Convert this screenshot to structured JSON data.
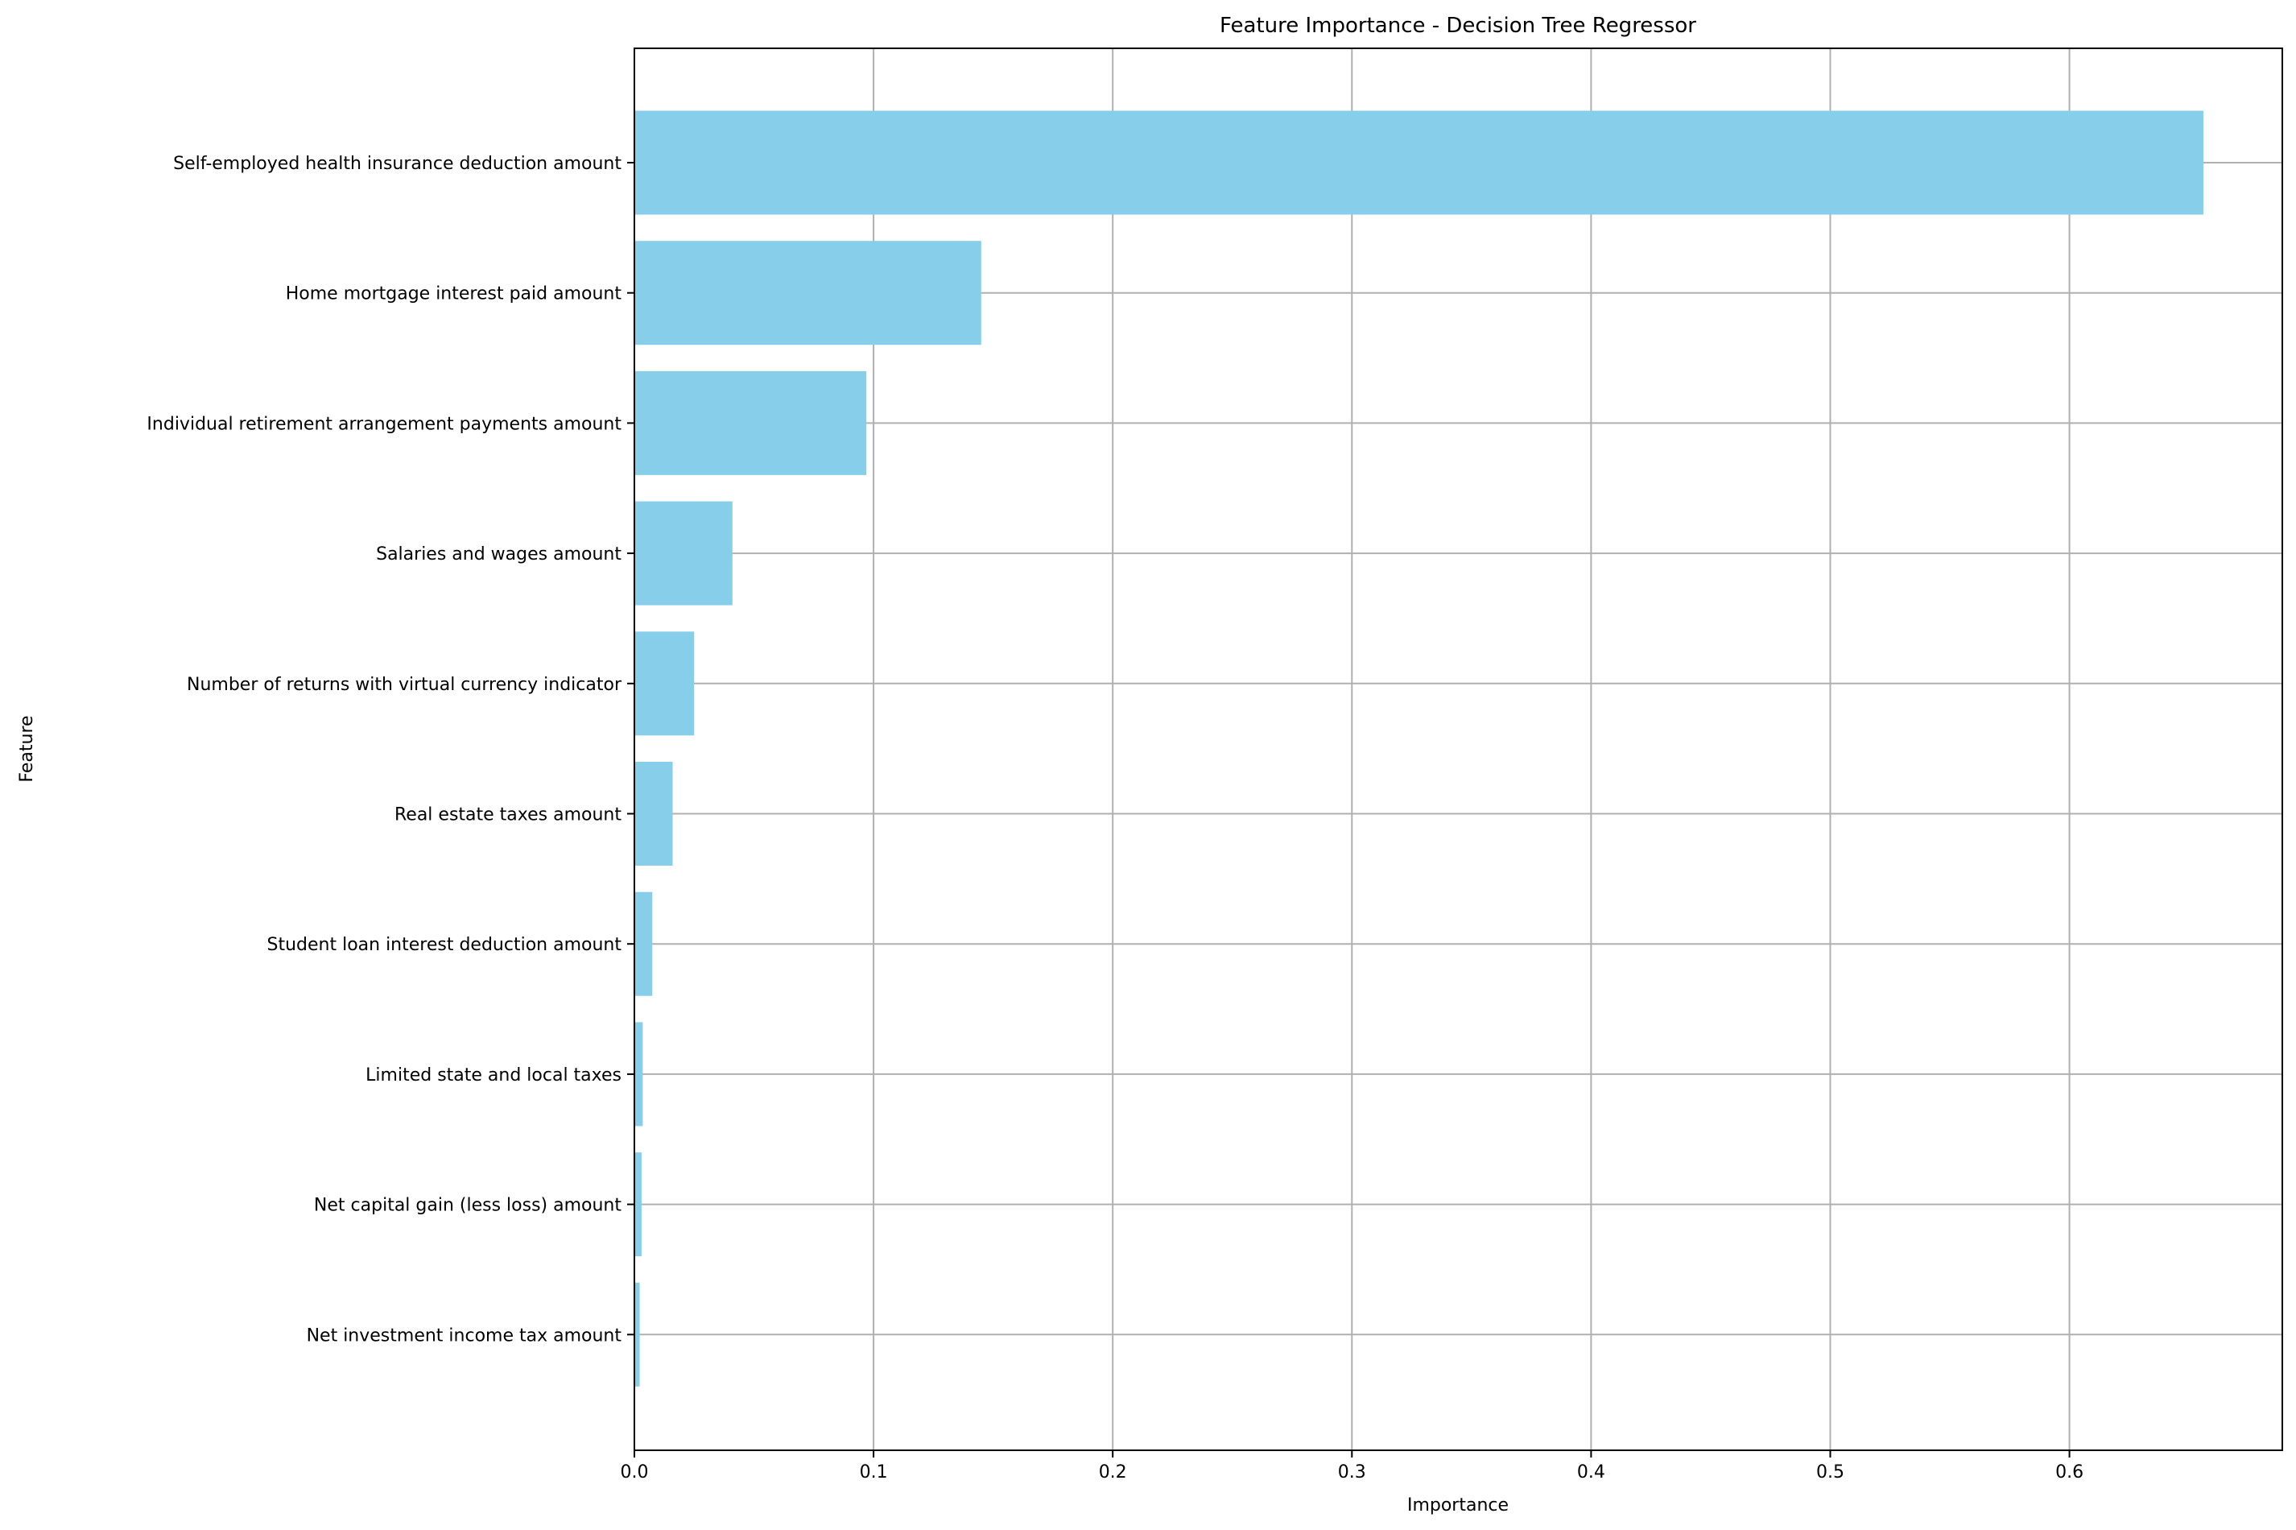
{
  "chart_data": {
    "type": "bar",
    "orientation": "horizontal",
    "title": "Feature Importance - Decision Tree Regressor",
    "xlabel": "Importance",
    "ylabel": "Feature",
    "categories": [
      "Self-employed health insurance deduction amount",
      "Home mortgage interest paid amount",
      "Individual retirement arrangement payments amount",
      "Salaries and wages amount",
      "Number of returns with virtual currency indicator",
      "Real estate taxes amount",
      "Student loan interest deduction amount",
      "Limited state and local taxes",
      "Net capital gain (less loss) amount",
      "Net investment income tax amount"
    ],
    "values": [
      0.656,
      0.145,
      0.097,
      0.041,
      0.025,
      0.016,
      0.0075,
      0.0035,
      0.003,
      0.0022
    ],
    "xlim": [
      0,
      0.689
    ],
    "xticks": [
      "0.0",
      "0.1",
      "0.2",
      "0.3",
      "0.4",
      "0.5",
      "0.6"
    ],
    "grid": true,
    "bar_color": "#87ceeb",
    "grid_color": "#b0b0b0"
  }
}
